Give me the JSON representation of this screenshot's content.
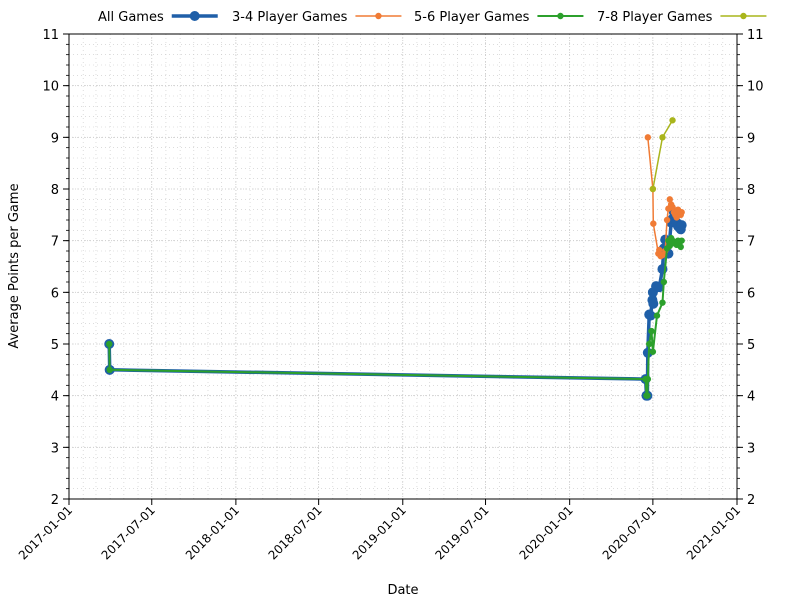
{
  "chart_data": {
    "type": "line",
    "xlabel": "Date",
    "ylabel": "Average Points per Game",
    "x_axis_type": "date",
    "xlim": [
      "2017-01-01",
      "2021-01-01"
    ],
    "ylim": [
      2,
      11
    ],
    "x_ticks": [
      "2017-01-01",
      "2017-07-01",
      "2018-01-01",
      "2018-07-01",
      "2019-01-01",
      "2019-07-01",
      "2020-01-01",
      "2020-07-01",
      "2021-01-01"
    ],
    "y_ticks": [
      2,
      3,
      4,
      5,
      6,
      7,
      8,
      9,
      10,
      11
    ],
    "grid": true,
    "legend_position": "top",
    "series": [
      {
        "name": "All Games",
        "color": "#1f5fa8",
        "x": [
          "2017-03-30",
          "2017-03-31",
          "2020-06-15",
          "2020-06-17",
          "2020-06-19",
          "2020-06-20",
          "2020-06-23",
          "2020-06-26",
          "2020-06-30",
          "2020-07-01",
          "2020-07-02",
          "2020-07-08",
          "2020-07-15",
          "2020-07-22",
          "2020-07-25",
          "2020-07-28",
          "2020-08-04",
          "2020-08-10",
          "2020-08-13",
          "2020-08-16",
          "2020-08-19",
          "2020-08-22",
          "2020-08-25",
          "2020-08-28",
          "2020-08-31",
          "2020-09-02"
        ],
        "y": [
          5.0,
          4.5,
          4.32,
          4.0,
          4.0,
          4.83,
          5.57,
          5.55,
          5.85,
          6.0,
          5.78,
          6.12,
          6.1,
          6.45,
          6.85,
          7.02,
          6.75,
          7.35,
          7.42,
          7.55,
          7.5,
          7.35,
          7.28,
          7.25,
          7.22,
          7.3
        ]
      },
      {
        "name": "3-4 Player Games",
        "color": "#f07b35",
        "x": [
          "2020-06-20",
          "2020-07-01",
          "2020-07-02",
          "2020-07-13",
          "2020-07-15",
          "2020-07-18",
          "2020-07-22",
          "2020-07-28",
          "2020-08-01",
          "2020-08-04",
          "2020-08-07",
          "2020-08-10",
          "2020-08-13",
          "2020-08-16",
          "2020-08-19",
          "2020-08-22",
          "2020-08-25",
          "2020-08-28",
          "2020-08-31",
          "2020-09-02"
        ],
        "y": [
          9.0,
          8.0,
          7.33,
          6.75,
          6.82,
          6.7,
          6.72,
          6.8,
          7.4,
          7.62,
          7.8,
          7.7,
          7.65,
          7.55,
          7.5,
          7.45,
          7.6,
          7.55,
          7.5,
          7.55
        ]
      },
      {
        "name": "5-6 Player Games",
        "color": "#2ca02c",
        "x": [
          "2017-03-30",
          "2017-03-31",
          "2020-06-15",
          "2020-06-17",
          "2020-06-19",
          "2020-06-20",
          "2020-06-23",
          "2020-06-28",
          "2020-07-01",
          "2020-07-10",
          "2020-07-22",
          "2020-07-25",
          "2020-08-01",
          "2020-08-04",
          "2020-08-07",
          "2020-08-10",
          "2020-08-13",
          "2020-08-16",
          "2020-08-19",
          "2020-08-22",
          "2020-08-25",
          "2020-08-28",
          "2020-08-31",
          "2020-09-02"
        ],
        "y": [
          5.0,
          4.5,
          4.32,
          4.0,
          4.0,
          4.32,
          5.0,
          5.25,
          4.85,
          5.55,
          5.8,
          6.2,
          6.85,
          7.0,
          6.9,
          7.05,
          7.0,
          6.95,
          6.97,
          6.92,
          7.0,
          6.95,
          6.88,
          7.0
        ]
      },
      {
        "name": "7-8 Player Games",
        "color": "#a9b51c",
        "x": [
          "2020-07-01",
          "2020-07-22",
          "2020-08-13"
        ],
        "y": [
          8.0,
          9.0,
          9.33
        ]
      }
    ]
  }
}
